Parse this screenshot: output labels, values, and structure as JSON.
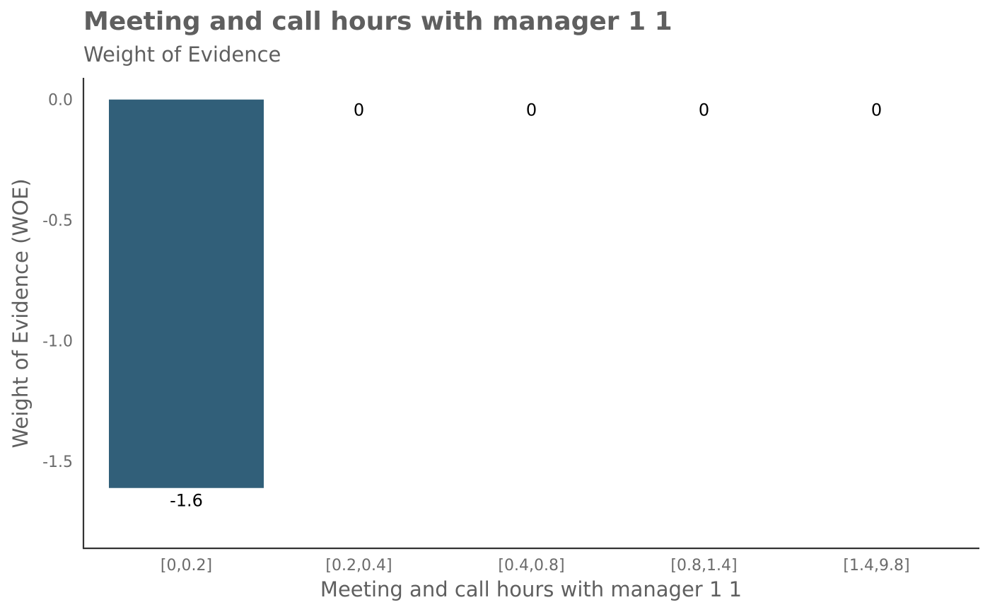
{
  "chart_data": {
    "type": "bar",
    "title": "Meeting and call hours with manager 1 1",
    "subtitle": "Weight of Evidence",
    "xlabel": "Meeting and call hours with manager 1 1",
    "ylabel": "Weight of Evidence (WOE)",
    "categories": [
      "[0,0.2]",
      "[0.2,0.4]",
      "[0.4,0.8]",
      "[0.8,1.4]",
      "[1.4,9.8]"
    ],
    "values": [
      -1.61,
      0,
      0,
      0,
      0
    ],
    "data_labels": [
      "-1.6",
      "0",
      "0",
      "0",
      "0"
    ],
    "yticks": [
      0.0,
      -0.5,
      -1.0,
      -1.5
    ],
    "ytick_labels": [
      "0.0",
      "-0.5",
      "-1.0",
      "-1.5"
    ],
    "ylim": [
      -1.86,
      0.09
    ],
    "grid": false,
    "legend": "none",
    "colors": {
      "bar": "#315f79",
      "text": "#5f5f5f",
      "axis": "#333333",
      "label": "#000000"
    }
  }
}
